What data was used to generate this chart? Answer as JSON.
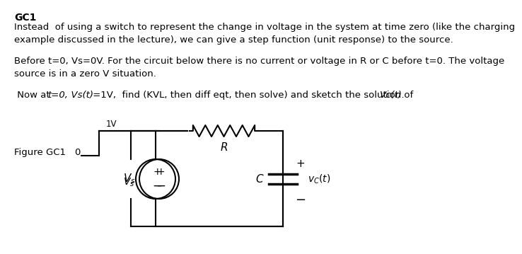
{
  "title": "GC1",
  "para1": "Instead  of using a switch to represent the change in voltage in the system at time zero (like the charging\nexample discussed in the lecture), we can give a step function (unit response) to the source.",
  "para2": "Before t=0, Vs=0V. For the circuit below there is no current or voltage in R or C before t=0. The voltage\nsource is in a zero V situation.",
  "bg_color": "#ffffff",
  "text_color": "#000000",
  "font_size_title": 10,
  "font_size_body": 9.5,
  "circuit_color": "#000000",
  "circuit_lw": 1.5
}
